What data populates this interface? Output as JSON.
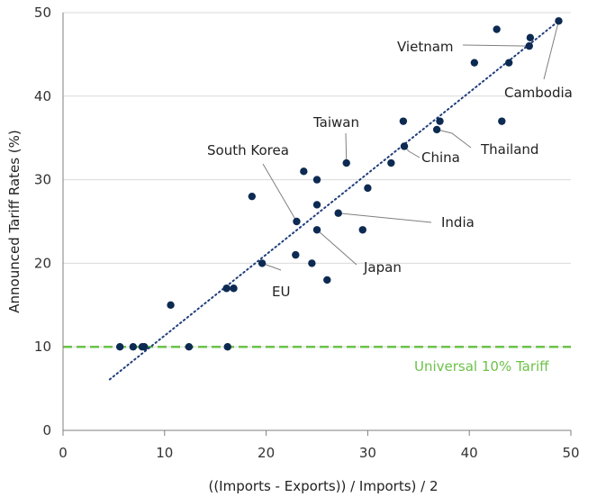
{
  "chart_data": {
    "type": "scatter",
    "xlabel": "((Imports - Exports)) / Imports) / 2",
    "ylabel": "Announced Tariff Rates (%)",
    "xlim": [
      0,
      50
    ],
    "ylim": [
      0,
      50
    ],
    "xticks": [
      "0",
      "10",
      "20",
      "30",
      "40",
      "50"
    ],
    "yticks": [
      "0",
      "10",
      "20",
      "30",
      "40",
      "50"
    ],
    "grid": "horizontal",
    "colors": {
      "points": "#0d2a52",
      "trendline": "#1f3e7a",
      "reference": "#6cc24a",
      "axis": "#7f7f7f",
      "grid": "#d9d9d9",
      "leader": "#7f7f7f"
    },
    "points": [
      [
        5.6,
        10
      ],
      [
        6.9,
        10
      ],
      [
        7.8,
        10
      ],
      [
        8.0,
        10
      ],
      [
        12.4,
        10
      ],
      [
        16.2,
        10
      ],
      [
        10.6,
        15
      ],
      [
        16.1,
        17
      ],
      [
        16.8,
        17
      ],
      [
        19.6,
        20
      ],
      [
        22.9,
        21
      ],
      [
        24.5,
        20
      ],
      [
        26.0,
        18
      ],
      [
        29.5,
        24
      ],
      [
        25.0,
        24
      ],
      [
        23.0,
        25
      ],
      [
        27.1,
        26
      ],
      [
        25.0,
        27
      ],
      [
        18.6,
        28
      ],
      [
        30.0,
        29
      ],
      [
        23.7,
        31
      ],
      [
        25.0,
        30
      ],
      [
        27.9,
        32
      ],
      [
        32.3,
        32
      ],
      [
        33.6,
        34
      ],
      [
        33.5,
        37
      ],
      [
        36.8,
        36
      ],
      [
        37.1,
        37
      ],
      [
        43.2,
        37
      ],
      [
        40.5,
        44
      ],
      [
        42.7,
        48
      ],
      [
        43.9,
        44
      ],
      [
        45.9,
        46
      ],
      [
        46.0,
        47
      ],
      [
        48.8,
        49
      ]
    ],
    "trendline": {
      "x": [
        4.6,
        48.8
      ],
      "y": [
        6.1,
        49.0
      ],
      "style": "dotted"
    },
    "reference_line": {
      "y": 10,
      "label": "Universal 10% Tariff",
      "style": "dashed"
    },
    "annotations": [
      {
        "label": "Vietnam",
        "x": 45.9,
        "y": 46
      },
      {
        "label": "Cambodia",
        "x": 48.8,
        "y": 49
      },
      {
        "label": "Taiwan",
        "x": 27.9,
        "y": 32
      },
      {
        "label": "China",
        "x": 33.6,
        "y": 34
      },
      {
        "label": "Thailand",
        "x": 36.8,
        "y": 36
      },
      {
        "label": "South Korea",
        "x": 23.0,
        "y": 25
      },
      {
        "label": "India",
        "x": 27.1,
        "y": 26
      },
      {
        "label": "Japan",
        "x": 25.0,
        "y": 24
      },
      {
        "label": "EU",
        "x": 19.6,
        "y": 20
      }
    ]
  }
}
